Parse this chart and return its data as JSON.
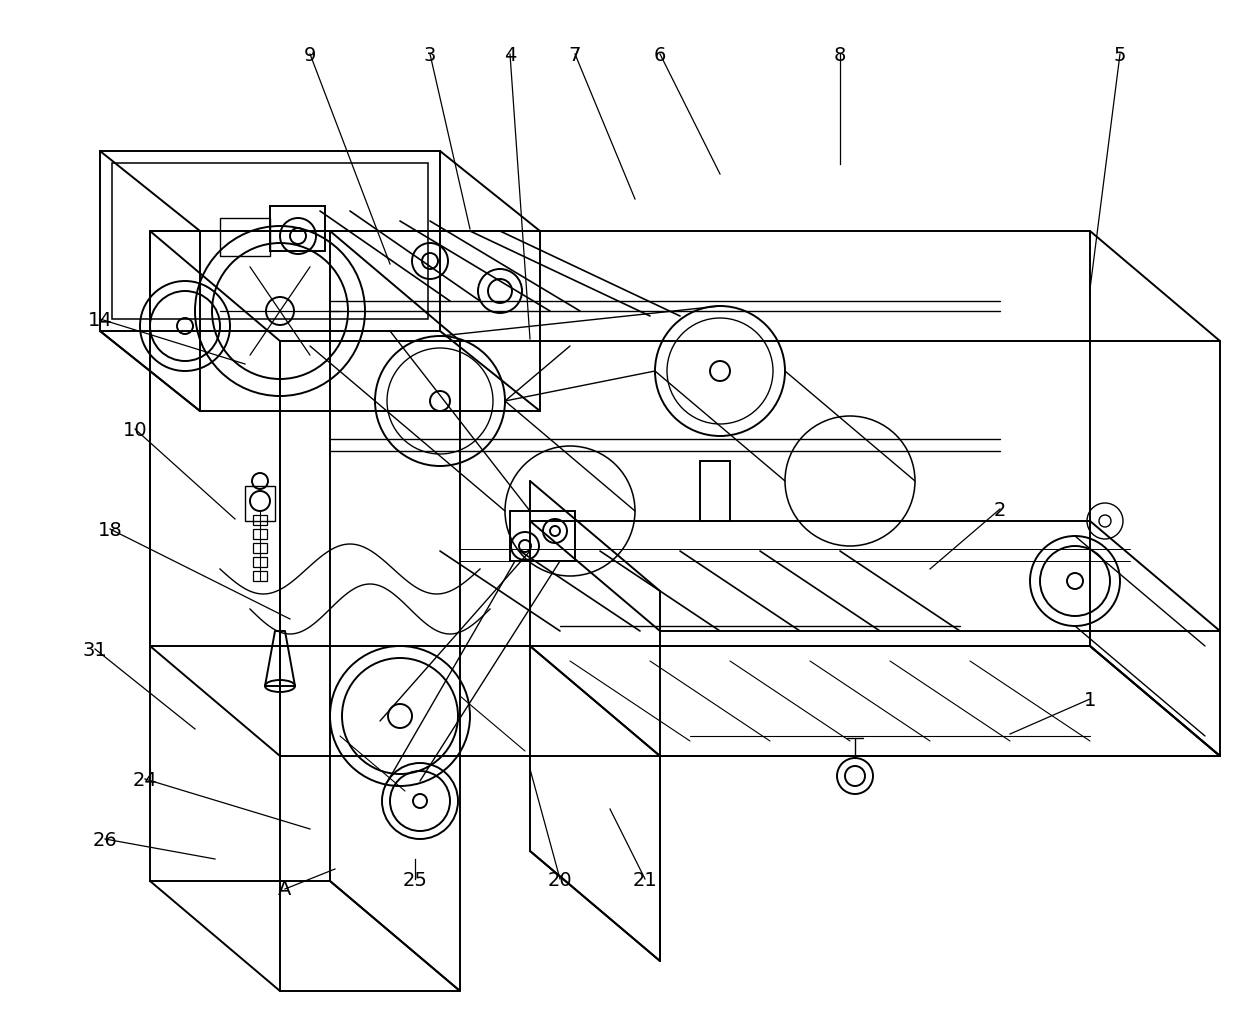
{
  "bg_color": "#ffffff",
  "line_color": "#000000",
  "figsize": [
    12.4,
    10.12
  ],
  "dpi": 100,
  "annotations": [
    [
      "1",
      1090,
      700,
      1010,
      735
    ],
    [
      "2",
      1000,
      510,
      930,
      570
    ],
    [
      "3",
      430,
      55,
      470,
      230
    ],
    [
      "4",
      510,
      55,
      530,
      340
    ],
    [
      "5",
      1120,
      55,
      1090,
      290
    ],
    [
      "6",
      660,
      55,
      720,
      175
    ],
    [
      "7",
      575,
      55,
      635,
      200
    ],
    [
      "8",
      840,
      55,
      840,
      165
    ],
    [
      "9",
      310,
      55,
      390,
      265
    ],
    [
      "10",
      135,
      430,
      235,
      520
    ],
    [
      "14",
      100,
      320,
      245,
      365
    ],
    [
      "18",
      110,
      530,
      290,
      620
    ],
    [
      "20",
      560,
      880,
      530,
      770
    ],
    [
      "21",
      645,
      880,
      610,
      810
    ],
    [
      "24",
      145,
      780,
      310,
      830
    ],
    [
      "25",
      415,
      880,
      415,
      860
    ],
    [
      "26",
      105,
      840,
      215,
      860
    ],
    [
      "31",
      95,
      650,
      195,
      730
    ],
    [
      "A",
      285,
      890,
      335,
      870
    ]
  ]
}
